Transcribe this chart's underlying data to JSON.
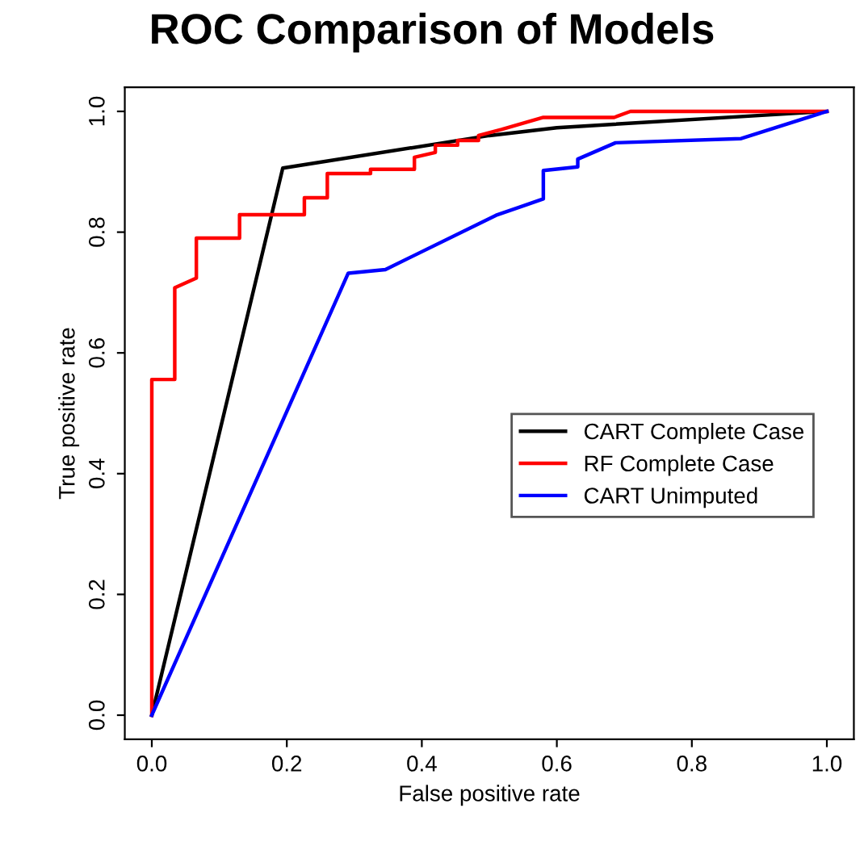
{
  "chart_data": {
    "type": "line",
    "title": "ROC Comparison of Models",
    "xlabel": "False positive rate",
    "ylabel": "True positive rate",
    "xlim": [
      -0.04,
      1.04
    ],
    "ylim": [
      -0.04,
      1.04
    ],
    "xticks": [
      {
        "value": 0,
        "label": "0.0"
      },
      0.2,
      0.4,
      0.6,
      0.8,
      {
        "value": 1,
        "label": "1.0"
      }
    ],
    "yticks": [
      {
        "value": 0,
        "label": "0.0"
      },
      0.2,
      0.4,
      0.6,
      0.8,
      {
        "value": 1,
        "label": "1.0"
      }
    ],
    "grid": false,
    "legend": "right",
    "marker": "none",
    "line_style": "solid",
    "series": [
      {
        "name": "CART Complete Case",
        "color": "#000000",
        "x": [
          0,
          0.194,
          0.5,
          0.6,
          1
        ],
        "values": [
          0,
          0.906,
          0.96,
          0.973,
          1
        ]
      },
      {
        "name": "RF Complete Case",
        "color": "#ff0000",
        "x": [
          0,
          0,
          0.034,
          0.034,
          0.066,
          0.066,
          0.13,
          0.13,
          0.226,
          0.226,
          0.26,
          0.26,
          0.324,
          0.324,
          0.389,
          0.389,
          0.42,
          0.42,
          0.453,
          0.453,
          0.484,
          0.484,
          0.518,
          0.58,
          0.685,
          0.709,
          1
        ],
        "values": [
          0,
          0.556,
          0.556,
          0.708,
          0.724,
          0.79,
          0.79,
          0.829,
          0.829,
          0.857,
          0.857,
          0.897,
          0.897,
          0.904,
          0.904,
          0.924,
          0.932,
          0.944,
          0.944,
          0.952,
          0.952,
          0.96,
          0.97,
          0.99,
          0.99,
          1,
          1
        ]
      },
      {
        "name": "CART Unimputed",
        "color": "#0000ff",
        "x": [
          0,
          0.291,
          0.346,
          0.51,
          0.58,
          0.58,
          0.631,
          0.631,
          0.687,
          0.873,
          1
        ],
        "values": [
          0,
          0.732,
          0.738,
          0.828,
          0.855,
          0.902,
          0.908,
          0.921,
          0.948,
          0.955,
          1
        ]
      }
    ]
  }
}
